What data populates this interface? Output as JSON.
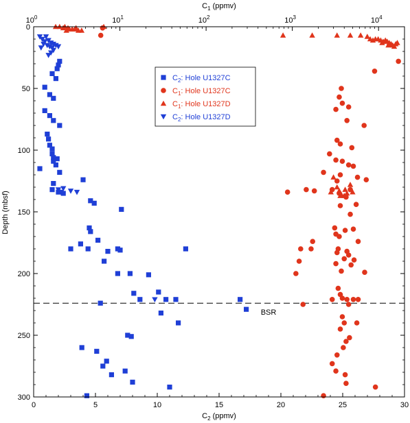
{
  "chart_data": {
    "type": "scatter",
    "top_axis": {
      "label_main": "C",
      "label_sub": "1",
      "label_unit": " (ppmv)",
      "scale": "log",
      "range": [
        1,
        20000
      ],
      "ticks": [
        {
          "value": 1,
          "base": "10",
          "exp": "0"
        },
        {
          "value": 10,
          "base": "10",
          "exp": "1"
        },
        {
          "value": 100,
          "base": "10",
          "exp": "2"
        },
        {
          "value": 1000,
          "base": "10",
          "exp": "3"
        },
        {
          "value": 10000,
          "base": "10",
          "exp": "4"
        }
      ]
    },
    "bottom_axis": {
      "label_main": "C",
      "label_sub": "2",
      "label_unit": " (ppmv)",
      "range": [
        0,
        30
      ],
      "ticks": [
        "0",
        "5",
        "10",
        "15",
        "20",
        "25",
        "30"
      ]
    },
    "y_axis": {
      "label": "Depth (mbsf)",
      "range": [
        0,
        300
      ],
      "reversed": true,
      "ticks": [
        "0",
        "50",
        "100",
        "150",
        "200",
        "250",
        "300"
      ]
    },
    "bsr": {
      "depth": 224,
      "label": "BSR"
    },
    "legend": {
      "placement": "top-center",
      "entries": [
        {
          "key": "c2_u1327c",
          "main": "C",
          "sub": "2",
          "rest": ": Hole U1327C",
          "marker": "square",
          "color": "#1f3fd6"
        },
        {
          "key": "c1_u1327c",
          "main": "C",
          "sub": "1",
          "rest": ": Hole U1327C",
          "marker": "circle",
          "color": "#e0351c"
        },
        {
          "key": "c1_u1327d",
          "main": "C",
          "sub": "1",
          "rest": ": Hole U1327D",
          "marker": "triangle-up",
          "color": "#e0351c"
        },
        {
          "key": "c2_u1327d",
          "main": "C",
          "sub": "2",
          "rest": ": Hole U1327D",
          "marker": "triangle-down",
          "color": "#1f3fd6"
        }
      ]
    },
    "series": [
      {
        "key": "c2_u1327c",
        "axis": "bottom",
        "points": [
          [
            2.1,
            28
          ],
          [
            2.0,
            31
          ],
          [
            1.9,
            34
          ],
          [
            1.5,
            38
          ],
          [
            1.8,
            42
          ],
          [
            0.9,
            49
          ],
          [
            1.3,
            55
          ],
          [
            1.6,
            58
          ],
          [
            0.9,
            68
          ],
          [
            1.3,
            72
          ],
          [
            1.6,
            76
          ],
          [
            2.1,
            80
          ],
          [
            1.1,
            87
          ],
          [
            1.2,
            91
          ],
          [
            1.3,
            96
          ],
          [
            1.5,
            99
          ],
          [
            1.5,
            103
          ],
          [
            1.6,
            106
          ],
          [
            1.9,
            107
          ],
          [
            1.6,
            109
          ],
          [
            1.8,
            112
          ],
          [
            2.1,
            118
          ],
          [
            0.5,
            115
          ],
          [
            1.6,
            127
          ],
          [
            4.0,
            124
          ],
          [
            1.5,
            132
          ],
          [
            2.0,
            134
          ],
          [
            2.4,
            135
          ],
          [
            4.6,
            141
          ],
          [
            4.9,
            143
          ],
          [
            7.1,
            148
          ],
          [
            4.5,
            163
          ],
          [
            4.6,
            166
          ],
          [
            5.2,
            173
          ],
          [
            3.8,
            176
          ],
          [
            3.0,
            180
          ],
          [
            4.4,
            180
          ],
          [
            6.8,
            180
          ],
          [
            6.0,
            182
          ],
          [
            7.0,
            181
          ],
          [
            12.3,
            180
          ],
          [
            5.7,
            190
          ],
          [
            6.8,
            200
          ],
          [
            7.8,
            200
          ],
          [
            9.3,
            201
          ],
          [
            8.1,
            216
          ],
          [
            8.6,
            221
          ],
          [
            10.1,
            215
          ],
          [
            10.7,
            221
          ],
          [
            11.5,
            221
          ],
          [
            16.7,
            221
          ],
          [
            5.4,
            224
          ],
          [
            10.3,
            232
          ],
          [
            17.2,
            229
          ],
          [
            11.7,
            240
          ],
          [
            7.6,
            250
          ],
          [
            7.9,
            251
          ],
          [
            3.9,
            260
          ],
          [
            5.1,
            263
          ],
          [
            5.9,
            271
          ],
          [
            5.6,
            275
          ],
          [
            7.4,
            279
          ],
          [
            6.3,
            282
          ],
          [
            8.0,
            288
          ],
          [
            11.0,
            292
          ],
          [
            4.3,
            299
          ]
        ]
      },
      {
        "key": "c2_u1327d",
        "axis": "bottom",
        "points": [
          [
            0.5,
            8
          ],
          [
            0.7,
            10
          ],
          [
            1.0,
            8
          ],
          [
            0.9,
            12
          ],
          [
            1.2,
            11
          ],
          [
            1.4,
            13
          ],
          [
            1.6,
            14
          ],
          [
            0.8,
            14
          ],
          [
            1.1,
            15
          ],
          [
            1.3,
            16
          ],
          [
            0.6,
            17
          ],
          [
            1.8,
            15
          ],
          [
            1.5,
            17
          ],
          [
            2.0,
            16
          ],
          [
            1.6,
            19
          ],
          [
            1.4,
            21
          ],
          [
            1.2,
            23
          ],
          [
            2.0,
            132
          ],
          [
            2.4,
            131
          ],
          [
            2.2,
            134
          ],
          [
            3.0,
            133
          ],
          [
            3.5,
            134
          ],
          [
            9.8,
            221
          ]
        ]
      },
      {
        "key": "c1_u1327c",
        "axis": "top",
        "points": [
          [
            6.0,
            7
          ],
          [
            6.3,
            1
          ],
          [
            9000,
            36
          ],
          [
            17000,
            28
          ],
          [
            3700,
            50
          ],
          [
            3500,
            57
          ],
          [
            3800,
            62
          ],
          [
            3200,
            67
          ],
          [
            4500,
            65
          ],
          [
            4300,
            76
          ],
          [
            6800,
            80
          ],
          [
            3300,
            92
          ],
          [
            3600,
            95
          ],
          [
            4900,
            98
          ],
          [
            2700,
            103
          ],
          [
            3200,
            108
          ],
          [
            3800,
            109
          ],
          [
            4500,
            112
          ],
          [
            5100,
            113
          ],
          [
            2300,
            118
          ],
          [
            3600,
            120
          ],
          [
            5700,
            122
          ],
          [
            3300,
            125
          ],
          [
            2900,
            132
          ],
          [
            4700,
            132
          ],
          [
            7200,
            124
          ],
          [
            1450,
            132
          ],
          [
            880,
            134
          ],
          [
            1800,
            133
          ],
          [
            3500,
            135
          ],
          [
            4200,
            138
          ],
          [
            3600,
            145
          ],
          [
            5500,
            144
          ],
          [
            4700,
            152
          ],
          [
            3100,
            163
          ],
          [
            4100,
            165
          ],
          [
            5100,
            164
          ],
          [
            3200,
            168
          ],
          [
            3500,
            170
          ],
          [
            5800,
            174
          ],
          [
            1720,
            174
          ],
          [
            3400,
            180
          ],
          [
            3300,
            183
          ],
          [
            4300,
            182
          ],
          [
            4500,
            185
          ],
          [
            4000,
            188
          ],
          [
            5200,
            189
          ],
          [
            3200,
            192
          ],
          [
            4800,
            193
          ],
          [
            3700,
            198
          ],
          [
            6900,
            199
          ],
          [
            1250,
            180
          ],
          [
            1650,
            180
          ],
          [
            1200,
            190
          ],
          [
            1100,
            200
          ],
          [
            3400,
            212
          ],
          [
            3600,
            217
          ],
          [
            2900,
            221
          ],
          [
            3800,
            220
          ],
          [
            4300,
            221
          ],
          [
            5100,
            221
          ],
          [
            4500,
            225
          ],
          [
            1330,
            225
          ],
          [
            5800,
            221
          ],
          [
            3800,
            235
          ],
          [
            4000,
            240
          ],
          [
            5600,
            240
          ],
          [
            3600,
            245
          ],
          [
            4600,
            252
          ],
          [
            4200,
            255
          ],
          [
            3900,
            260
          ],
          [
            3300,
            266
          ],
          [
            2900,
            273
          ],
          [
            3200,
            279
          ],
          [
            4100,
            282
          ],
          [
            4200,
            289
          ],
          [
            9200,
            292
          ],
          [
            2300,
            299
          ]
        ]
      },
      {
        "key": "c1_u1327d",
        "axis": "top",
        "points": [
          [
            1.8,
            0
          ],
          [
            2.0,
            0
          ],
          [
            2.2,
            1
          ],
          [
            2.3,
            0
          ],
          [
            2.5,
            1
          ],
          [
            2.6,
            2
          ],
          [
            2.8,
            2
          ],
          [
            3.0,
            2
          ],
          [
            3.3,
            3
          ],
          [
            3.6,
            3
          ],
          [
            3.1,
            1
          ],
          [
            2.4,
            3
          ],
          [
            6.5,
            0
          ],
          [
            780,
            7
          ],
          [
            1700,
            7
          ],
          [
            3300,
            7
          ],
          [
            4700,
            7
          ],
          [
            6200,
            7
          ],
          [
            7400,
            8
          ],
          [
            8000,
            10
          ],
          [
            8600,
            11
          ],
          [
            9200,
            10
          ],
          [
            9900,
            10
          ],
          [
            10600,
            11
          ],
          [
            11300,
            12
          ],
          [
            12000,
            11
          ],
          [
            12600,
            12
          ],
          [
            13300,
            13
          ],
          [
            14000,
            14
          ],
          [
            14600,
            15
          ],
          [
            15200,
            16
          ],
          [
            15800,
            14
          ],
          [
            16500,
            13
          ],
          [
            11000,
            13
          ],
          [
            13000,
            15
          ],
          [
            3000,
            122
          ],
          [
            3300,
            130
          ],
          [
            2800,
            134
          ],
          [
            3600,
            137
          ],
          [
            4000,
            137
          ],
          [
            4300,
            135
          ],
          [
            5000,
            134
          ],
          [
            4700,
            128
          ],
          [
            4100,
            132
          ],
          [
            3500,
            133
          ],
          [
            3700,
            136
          ]
        ]
      }
    ]
  }
}
